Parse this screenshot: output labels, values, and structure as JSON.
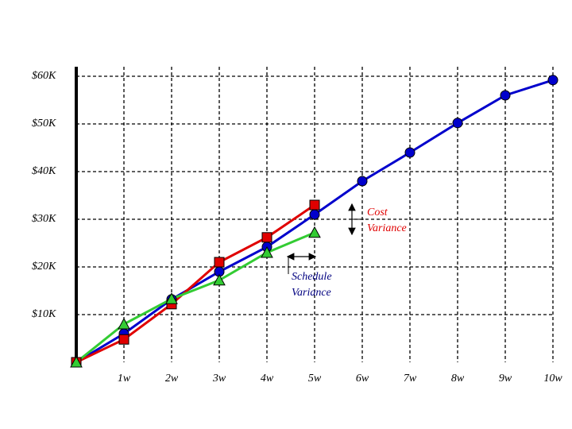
{
  "chart_data": {
    "type": "line",
    "categories": [
      null,
      "1w",
      "2w",
      "3w",
      "4w",
      "5w",
      "6w",
      "7w",
      "8w",
      "9w",
      "10w"
    ],
    "series": [
      {
        "color": "#0000cc",
        "marker": "circle",
        "values": [
          0,
          6,
          13.2,
          19,
          24.2,
          31,
          38,
          44,
          50.2,
          56,
          59.2
        ]
      },
      {
        "color": "#e00000",
        "marker": "square",
        "values": [
          0,
          4.8,
          12.2,
          21,
          26.2,
          33,
          null,
          null,
          null,
          null,
          null
        ]
      },
      {
        "color": "#33cc33",
        "marker": "triangle",
        "values": [
          0,
          8,
          13.3,
          17.2,
          23,
          27.2,
          null,
          null,
          null,
          null,
          null
        ]
      }
    ],
    "ylim": [
      0,
      62
    ],
    "yticks": [
      {
        "value": 10,
        "label": "$10K"
      },
      {
        "value": 20,
        "label": "$20K"
      },
      {
        "value": 30,
        "label": "$30K"
      },
      {
        "value": 40,
        "label": "$40K"
      },
      {
        "value": 50,
        "label": "$50K"
      },
      {
        "value": 60,
        "label": "$60K"
      }
    ],
    "grid": true,
    "annotations": [
      {
        "lines": [
          "Cost",
          "Variance"
        ],
        "color": "#e00000"
      },
      {
        "lines": [
          "Schedule",
          "Variance"
        ],
        "color": "#000080"
      }
    ]
  }
}
